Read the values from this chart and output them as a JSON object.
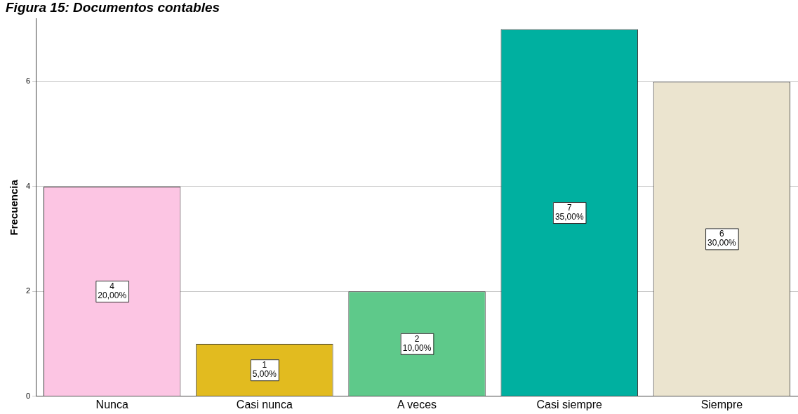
{
  "chart_data": {
    "type": "bar",
    "title": "Figura 15: Documentos contables",
    "ylabel": "Frecuencia",
    "categories": [
      "Nunca",
      "Casi nunca",
      "A veces",
      "Casi siempre",
      "Siempre"
    ],
    "values": [
      4,
      1,
      2,
      7,
      6
    ],
    "colors": [
      "#fcc5e3",
      "#e2bb1f",
      "#5ec98a",
      "#00b0a0",
      "#ebe4cf"
    ],
    "value_labels": [
      "4\n20,00%",
      "1\n5,00%",
      "2\n10,00%",
      "7\n35,00%",
      "6\n30,00%"
    ],
    "ylim": [
      0,
      7.2
    ],
    "yticks": [
      0,
      2,
      4,
      6
    ],
    "grid": "y",
    "legend": false
  }
}
